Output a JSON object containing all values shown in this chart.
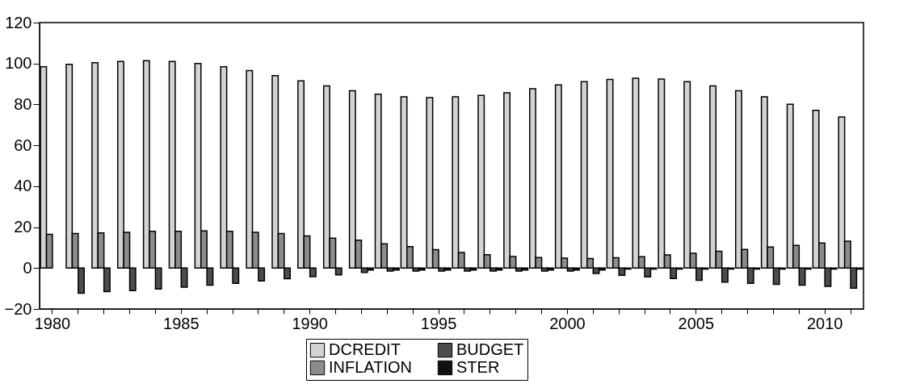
{
  "chart_data": {
    "type": "bar",
    "categories": [
      "1980",
      null,
      null,
      null,
      null,
      "1985",
      null,
      null,
      null,
      null,
      "1990",
      null,
      null,
      null,
      null,
      "1995",
      null,
      null,
      null,
      null,
      "2000",
      null,
      null,
      null,
      null,
      "2005",
      null,
      null,
      null,
      null,
      "2010",
      null
    ],
    "series": [
      {
        "name": "DCREDIT",
        "color": "#d3d3d3",
        "values": [
          98.4,
          99.6,
          100.4,
          101,
          101.4,
          101,
          100,
          98.4,
          96.5,
          94.1,
          91.5,
          89,
          86.7,
          85,
          83.7,
          83.3,
          83.7,
          84.4,
          85.7,
          87.7,
          89.5,
          91.1,
          92.2,
          92.8,
          92.4,
          91.1,
          89,
          86.7,
          83.7,
          80.1,
          77.1,
          73.9
        ]
      },
      {
        "name": "INFLATION",
        "color": "#8c8c8c",
        "values": [
          16.5,
          16.9,
          17.2,
          17.5,
          18,
          18,
          18.2,
          18,
          17.5,
          16.9,
          15.7,
          14.6,
          13.6,
          11.8,
          10.5,
          9,
          7.6,
          6.5,
          5.6,
          5.1,
          4.8,
          4.6,
          5,
          5.5,
          6.4,
          7.2,
          8.2,
          9.1,
          10.3,
          11.1,
          12.2,
          13.1
        ]
      },
      {
        "name": "BUDGET",
        "color": "#4d4d4d",
        "values": [
          null,
          -12.3,
          -11.5,
          -11,
          -10.2,
          -9.4,
          -8.4,
          -7.5,
          -6.3,
          -5.2,
          -4.2,
          -3.3,
          -2.2,
          -1.5,
          -1.5,
          -1.5,
          -1.5,
          -1.5,
          -1.5,
          -1.5,
          -1.5,
          -2.6,
          -3.5,
          -4.3,
          -5.1,
          -6,
          -6.9,
          -7.5,
          -8,
          -8.4,
          -9,
          -9.8
        ]
      },
      {
        "name": "STER",
        "color": "#111111",
        "values": [
          null,
          null,
          null,
          null,
          null,
          null,
          null,
          null,
          null,
          null,
          null,
          null,
          -1,
          -1,
          -1,
          -1,
          -1,
          -1,
          -1,
          -1,
          -1,
          -1,
          -0.5,
          -0.5,
          -0.5,
          -0.5,
          -0.5,
          -0.5,
          -0.5,
          -0.5,
          -0.5,
          -0.5
        ]
      }
    ],
    "ylim": [
      -20,
      120
    ],
    "yticks": [
      -20,
      0,
      20,
      40,
      60,
      80,
      100,
      120
    ],
    "grid": false,
    "legend": "bottom"
  }
}
